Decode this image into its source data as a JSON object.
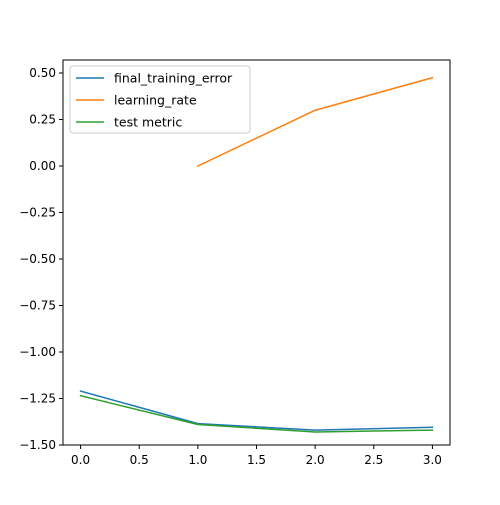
{
  "chart_data": {
    "type": "line",
    "title": "",
    "xlabel": "",
    "ylabel": "",
    "xlim": [
      -0.15,
      3.15
    ],
    "ylim": [
      -1.5,
      0.57
    ],
    "xticks": [
      0.0,
      0.5,
      1.0,
      1.5,
      2.0,
      2.5,
      3.0
    ],
    "xtick_labels": [
      "0.0",
      "0.5",
      "1.0",
      "1.5",
      "2.0",
      "2.5",
      "3.0"
    ],
    "yticks": [
      0.5,
      0.25,
      0.0,
      -0.25,
      -0.5,
      -0.75,
      -1.0,
      -1.25,
      -1.5
    ],
    "ytick_labels": [
      "0.50",
      "0.25",
      "0.00",
      "−0.25",
      "−0.50",
      "−0.75",
      "−1.00",
      "−1.25",
      "−1.50"
    ],
    "grid": false,
    "legend_position": "top-left",
    "series": [
      {
        "name": "final_training_error",
        "color": "#1f77b4",
        "x": [
          0,
          1,
          2,
          3
        ],
        "y": [
          -1.21,
          -1.385,
          -1.42,
          -1.405
        ]
      },
      {
        "name": "learning_rate",
        "color": "#ff7f0e",
        "x": [
          1,
          2,
          3
        ],
        "y": [
          0.0,
          0.3,
          0.475
        ]
      },
      {
        "name": "test metric",
        "color": "#2ca02c",
        "x": [
          0,
          1,
          2,
          3
        ],
        "y": [
          -1.235,
          -1.39,
          -1.43,
          -1.42
        ]
      }
    ]
  }
}
